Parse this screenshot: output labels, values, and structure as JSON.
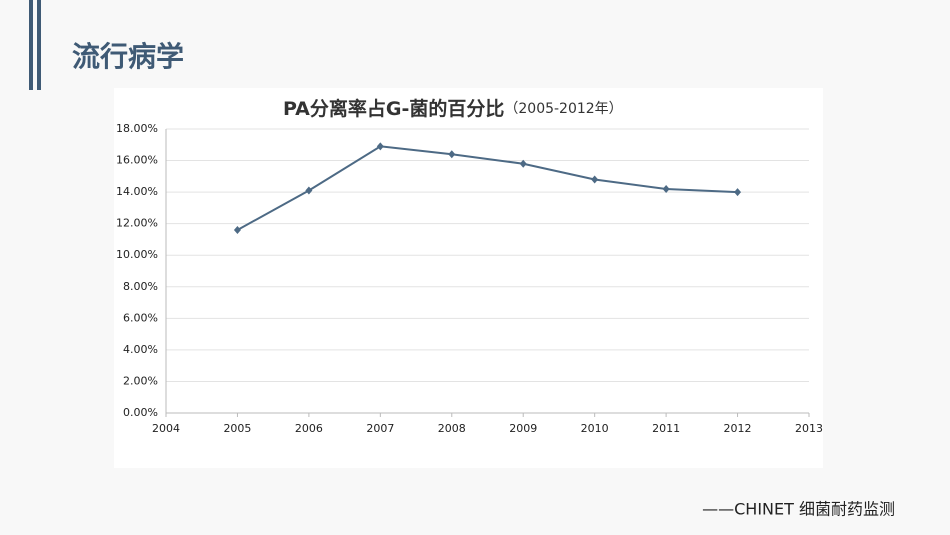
{
  "header": {
    "title": "流行病学"
  },
  "chart_data": {
    "type": "line",
    "title": "PA分离率占G-菌的百分比",
    "subtitle": "（2005-2012年）",
    "x": [
      2005,
      2006,
      2007,
      2008,
      2009,
      2010,
      2011,
      2012
    ],
    "values": [
      11.6,
      14.1,
      16.9,
      16.4,
      15.8,
      14.8,
      14.2,
      14.0
    ],
    "color": "#4d6a85",
    "xlim": [
      2004,
      2013
    ],
    "xticks": [
      2004,
      2005,
      2006,
      2007,
      2008,
      2009,
      2010,
      2011,
      2012,
      2013
    ],
    "ylim": [
      0,
      18
    ],
    "yticks": [
      {
        "value": 0,
        "label": "0.00%"
      },
      {
        "value": 2,
        "label": "2.00%"
      },
      {
        "value": 4,
        "label": "4.00%"
      },
      {
        "value": 6,
        "label": "6.00%"
      },
      {
        "value": 8,
        "label": "8.00%"
      },
      {
        "value": 10,
        "label": "10.00%"
      },
      {
        "value": 12,
        "label": "12.00%"
      },
      {
        "value": 14,
        "label": "14.00%"
      },
      {
        "value": 16,
        "label": "16.00%"
      },
      {
        "value": 18,
        "label": "18.00%"
      }
    ],
    "grid": true
  },
  "footer": {
    "source": "——CHINET 细菌耐药监测"
  }
}
